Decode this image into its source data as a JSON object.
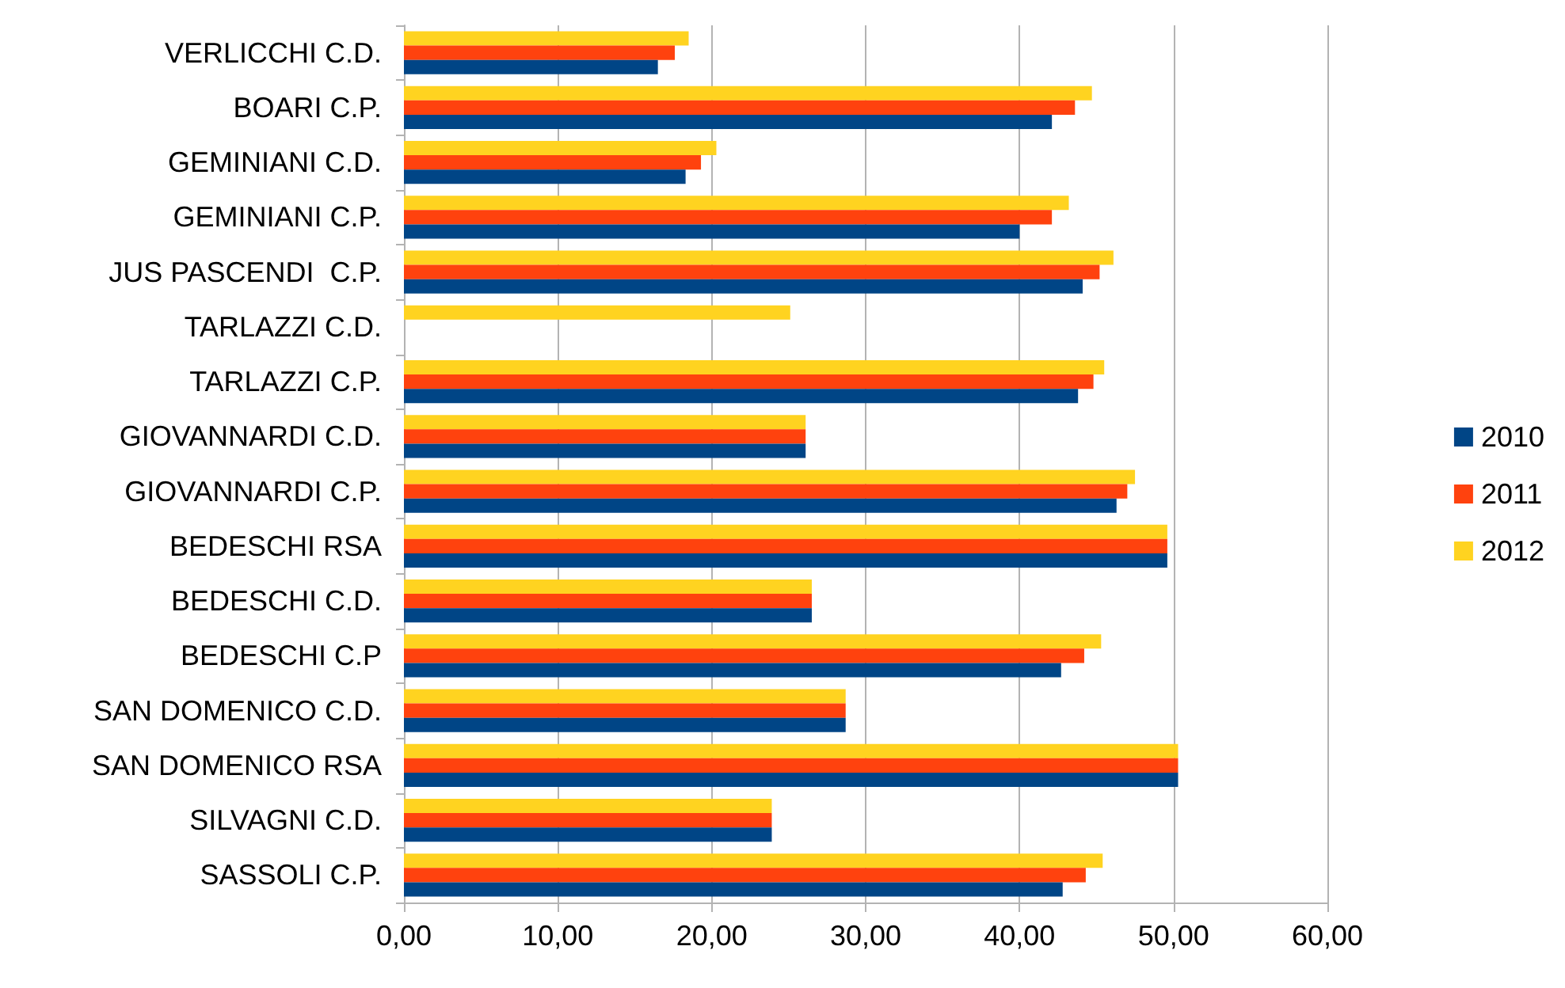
{
  "chart_data": {
    "type": "bar",
    "orientation": "horizontal",
    "categories": [
      "VERLICCHI C.D.",
      "BOARI C.P.",
      "GEMINIANI C.D.",
      "GEMINIANI C.P.",
      "JUS PASCENDI  C.P.",
      "TARLAZZI C.D.",
      "TARLAZZI C.P.",
      "GIOVANNARDI C.D.",
      "GIOVANNARDI C.P.",
      "BEDESCHI RSA",
      "BEDESCHI C.D.",
      "BEDESCHI C.P",
      "SAN DOMENICO C.D.",
      "SAN DOMENICO RSA",
      "SILVAGNI C.D.",
      "SASSOLI C.P."
    ],
    "series": [
      {
        "name": "2010",
        "color": "#004586",
        "values": [
          16.5,
          42.1,
          18.3,
          40.0,
          44.1,
          null,
          43.8,
          26.1,
          46.3,
          49.6,
          26.5,
          42.7,
          28.7,
          50.3,
          23.9,
          42.8
        ]
      },
      {
        "name": "2011",
        "color": "#ff420e",
        "values": [
          17.6,
          43.6,
          19.3,
          42.1,
          45.2,
          null,
          44.8,
          26.1,
          47.0,
          49.6,
          26.5,
          44.2,
          28.7,
          50.3,
          23.9,
          44.3
        ]
      },
      {
        "name": "2012",
        "color": "#ffd320",
        "values": [
          18.5,
          44.7,
          20.3,
          43.2,
          46.1,
          25.1,
          45.5,
          26.1,
          47.5,
          49.6,
          26.5,
          45.3,
          28.7,
          50.3,
          23.9,
          45.4
        ]
      }
    ],
    "xlim": [
      0,
      60
    ],
    "xticks": [
      {
        "value": 0,
        "label": "0,00"
      },
      {
        "value": 10,
        "label": "10,00"
      },
      {
        "value": 20,
        "label": "20,00"
      },
      {
        "value": 30,
        "label": "30,00"
      },
      {
        "value": 40,
        "label": "40,00"
      },
      {
        "value": 50,
        "label": "50,00"
      },
      {
        "value": 60,
        "label": "60,00"
      }
    ],
    "grid": "x",
    "legend": "right"
  }
}
